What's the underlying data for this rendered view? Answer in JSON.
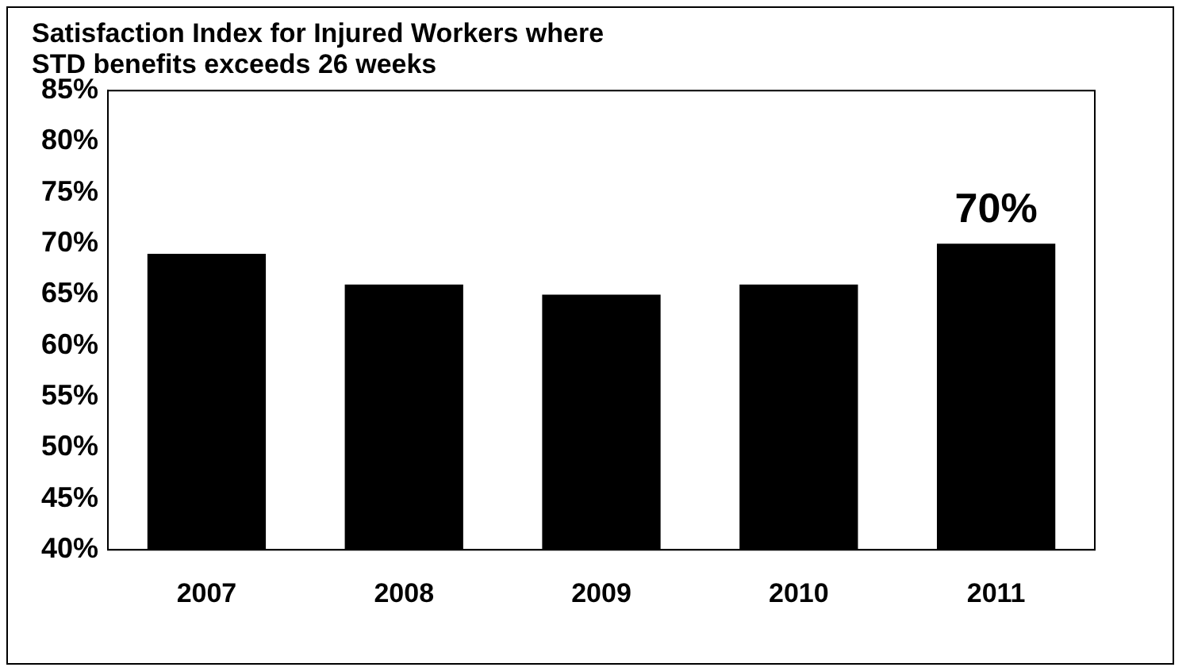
{
  "chart_data": {
    "type": "bar",
    "title": [
      "Satisfaction Index for Injured Workers where",
      "STD benefits exceeds 26 weeks"
    ],
    "categories": [
      "2007",
      "2008",
      "2009",
      "2010",
      "2011"
    ],
    "values": [
      69,
      66,
      65,
      66,
      70
    ],
    "value_labels": [
      null,
      null,
      null,
      null,
      "70%"
    ],
    "color": "#000000",
    "ylim": [
      40,
      85
    ],
    "yticks": [
      {
        "value": 40,
        "label": "40%"
      },
      {
        "value": 45,
        "label": "45%"
      },
      {
        "value": 50,
        "label": "50%"
      },
      {
        "value": 55,
        "label": "55%"
      },
      {
        "value": 60,
        "label": "60%"
      },
      {
        "value": 65,
        "label": "65%"
      },
      {
        "value": 70,
        "label": "70%"
      },
      {
        "value": 75,
        "label": "75%"
      },
      {
        "value": 80,
        "label": "80%"
      },
      {
        "value": 85,
        "label": "85%"
      }
    ],
    "grid": false,
    "legend": false
  }
}
